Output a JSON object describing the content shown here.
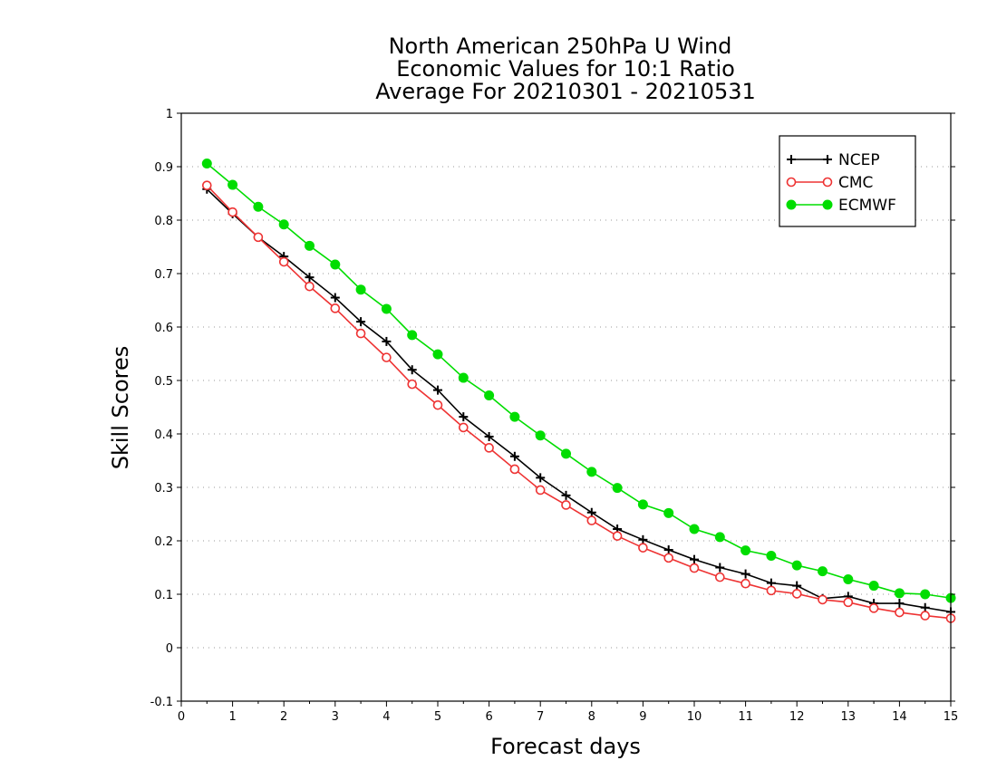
{
  "chart_data": {
    "type": "line",
    "title_lines": [
      "North American 250hPa U Wind",
      "Economic Values for 10:1 Ratio",
      "Average For 20210301 - 20210531"
    ],
    "xlabel": "Forecast days",
    "ylabel": "Skill Scores",
    "xlim": [
      0,
      15
    ],
    "ylim": [
      -0.1,
      1
    ],
    "xticks": [
      "0",
      "1",
      "2",
      "3",
      "4",
      "5",
      "6",
      "7",
      "8",
      "9",
      "10",
      "11",
      "12",
      "13",
      "14",
      "15"
    ],
    "yticks": [
      "-0.1",
      "0",
      "0.1",
      "0.2",
      "0.3",
      "0.4",
      "0.5",
      "0.6",
      "0.7",
      "0.8",
      "0.9",
      "1"
    ],
    "grid": "horizontal-dotted",
    "legend_position": "top-right",
    "x": [
      0.5,
      1,
      1.5,
      2,
      2.5,
      3,
      3.5,
      4,
      4.5,
      5,
      5.5,
      6,
      6.5,
      7,
      7.5,
      8,
      8.5,
      9,
      9.5,
      10,
      10.5,
      11,
      11.5,
      12,
      12.5,
      13,
      13.5,
      14,
      14.5,
      15
    ],
    "series": [
      {
        "name": "NCEP",
        "color": "#000000",
        "marker": "plus",
        "values": [
          0.858,
          0.812,
          0.768,
          0.732,
          0.693,
          0.655,
          0.61,
          0.573,
          0.52,
          0.482,
          0.432,
          0.395,
          0.358,
          0.318,
          0.285,
          0.253,
          0.222,
          0.202,
          0.183,
          0.165,
          0.15,
          0.138,
          0.121,
          0.116,
          0.092,
          0.096,
          0.083,
          0.083,
          0.075,
          0.067
        ]
      },
      {
        "name": "CMC",
        "color": "#ee3333",
        "marker": "open-circle",
        "values": [
          0.865,
          0.815,
          0.768,
          0.722,
          0.676,
          0.635,
          0.588,
          0.543,
          0.493,
          0.454,
          0.412,
          0.374,
          0.334,
          0.295,
          0.267,
          0.238,
          0.209,
          0.187,
          0.168,
          0.149,
          0.132,
          0.12,
          0.107,
          0.101,
          0.09,
          0.085,
          0.074,
          0.066,
          0.06,
          0.055
        ]
      },
      {
        "name": "ECMWF",
        "color": "#00dd00",
        "marker": "filled-circle",
        "values": [
          0.906,
          0.866,
          0.825,
          0.792,
          0.752,
          0.717,
          0.67,
          0.634,
          0.585,
          0.549,
          0.505,
          0.472,
          0.432,
          0.397,
          0.363,
          0.329,
          0.299,
          0.268,
          0.252,
          0.222,
          0.207,
          0.182,
          0.172,
          0.154,
          0.143,
          0.128,
          0.116,
          0.102,
          0.1,
          0.093
        ]
      }
    ]
  }
}
